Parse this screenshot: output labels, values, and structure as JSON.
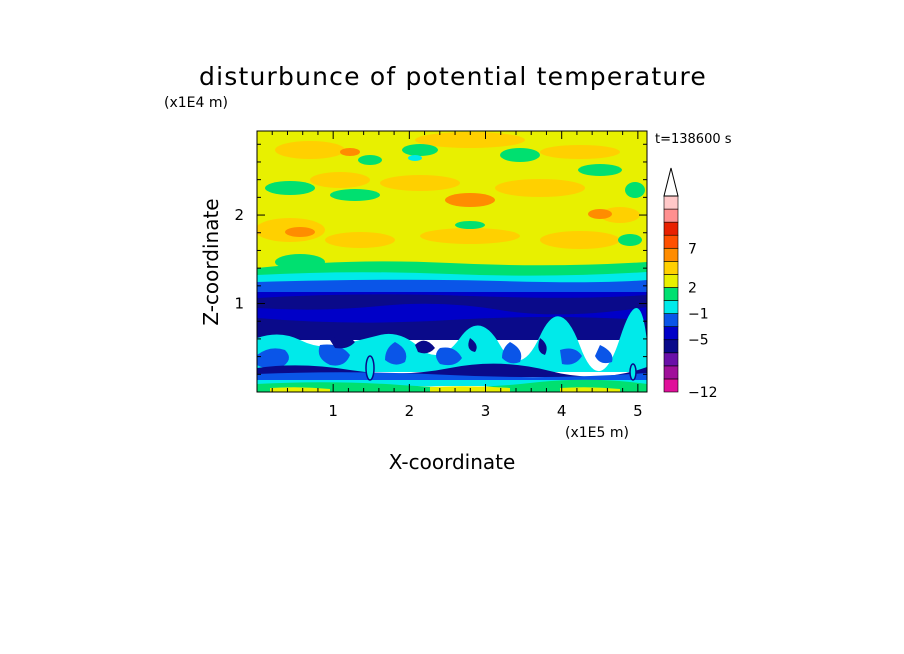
{
  "chart_data": {
    "type": "heatmap",
    "title": "disturbunce of potential temperature",
    "xlabel": "X-coordinate",
    "ylabel": "Z-coordinate",
    "x_unit": "(x1E5 m)",
    "y_unit": "(x1E4 m)",
    "time_label": "t=138600 s",
    "xlim": [
      0,
      5.12
    ],
    "ylim": [
      0,
      2.95
    ],
    "xticks": [
      1,
      2,
      3,
      4,
      5
    ],
    "yticks": [
      1,
      2
    ],
    "colorbar": {
      "labels": [
        {
          "text": "7",
          "value": 7
        },
        {
          "text": "2",
          "value": 2
        },
        {
          "text": "−1",
          "value": -1
        },
        {
          "text": "−5",
          "value": -5
        },
        {
          "text": "−12",
          "value": -12
        }
      ],
      "colors": [
        "#e0109a",
        "#a0109a",
        "#6a10a8",
        "#0a0a8a",
        "#0000c8",
        "#0a55e8",
        "#00eaea",
        "#00e070",
        "#e8f000",
        "#ffd000",
        "#ff8c00",
        "#ff5000",
        "#e82000",
        "#ff9090",
        "#ffc8c8"
      ],
      "extend_top": true
    },
    "layers": [
      {
        "z_range": [
          0.0,
          0.12
        ],
        "dominant_level": 1,
        "note": "near-surface green/cyan"
      },
      {
        "z_range": [
          0.12,
          0.27
        ],
        "dominant_level": -5
      },
      {
        "z_range": [
          0.27,
          0.7
        ],
        "dominant_level": -1
      },
      {
        "z_range": [
          0.7,
          1.25
        ],
        "dominant_level": -5
      },
      {
        "z_range": [
          1.25,
          1.4
        ],
        "dominant_level": -3
      },
      {
        "z_range": [
          1.4,
          1.55
        ],
        "dominant_level": 0
      },
      {
        "z_range": [
          1.55,
          2.95
        ],
        "dominant_level": 1
      }
    ],
    "grid": false,
    "legend": "colorbar right"
  }
}
